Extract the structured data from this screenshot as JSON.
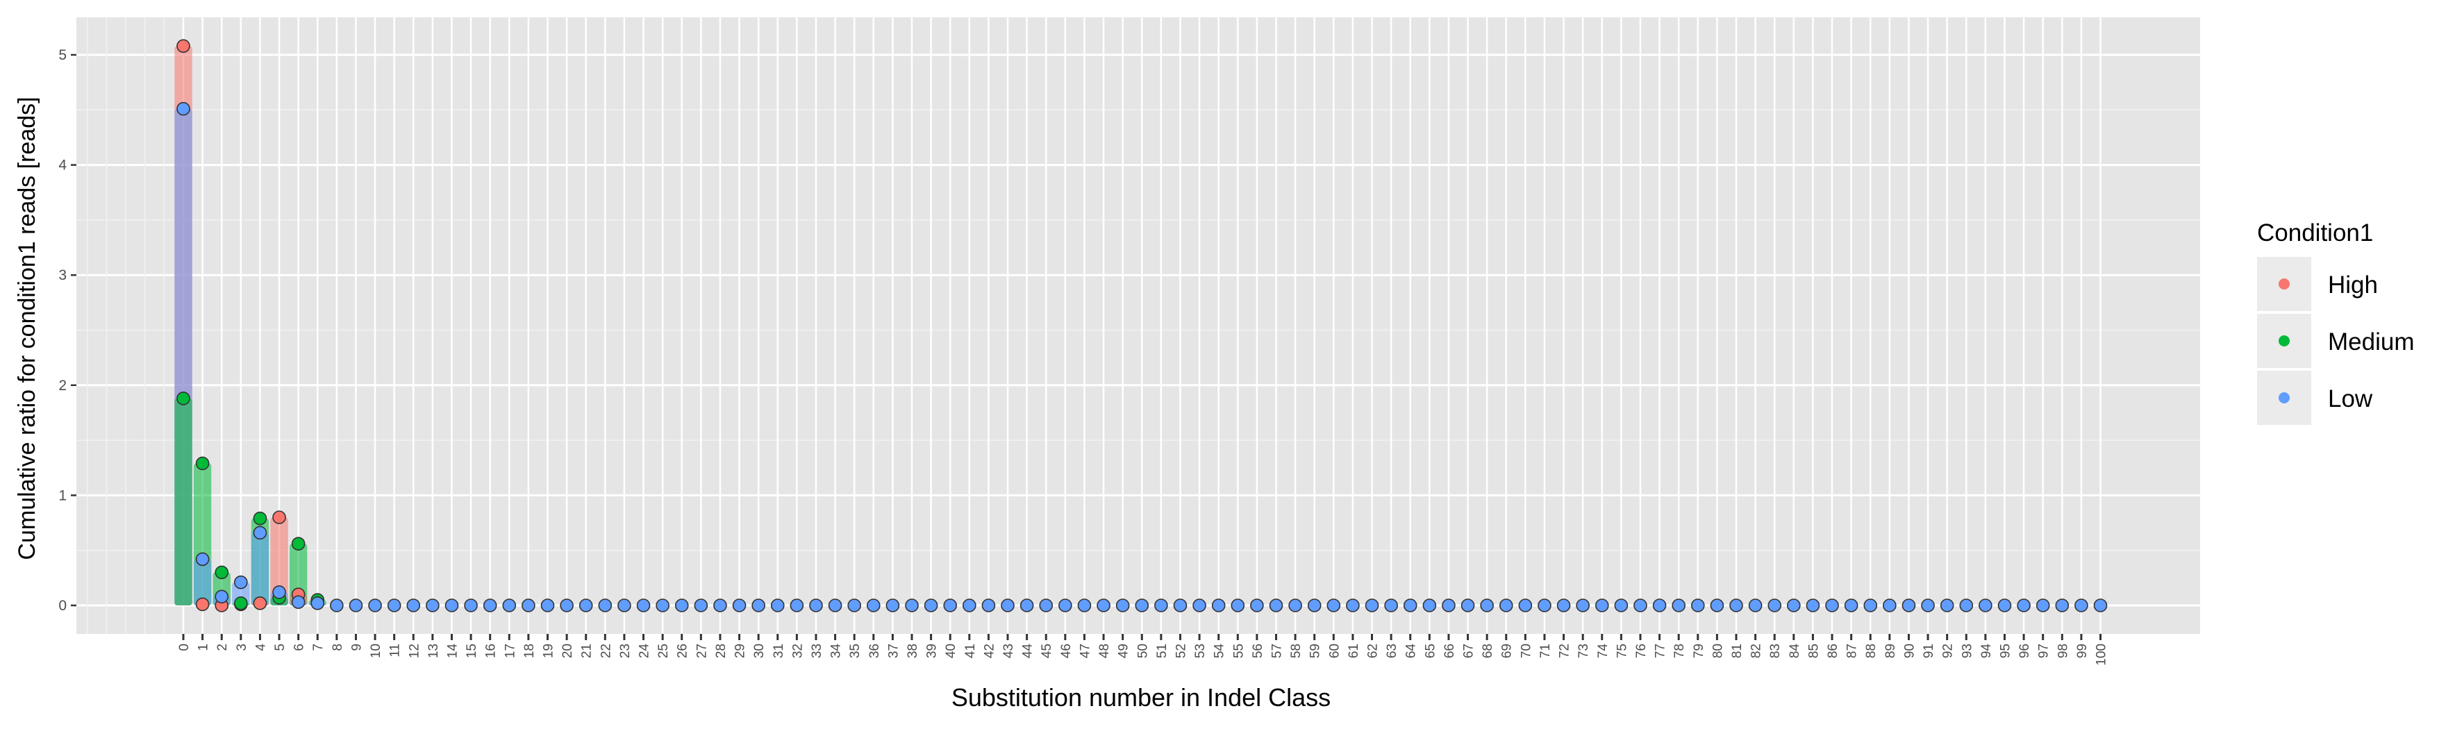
{
  "colors": {
    "panel": "#e5e5e5",
    "grid_major": "#ffffff",
    "grid_minor": "#f2f2f2",
    "High": "#f8766d",
    "Medium": "#00ba38",
    "Low": "#619cff",
    "axis_text": "#4d4d4d",
    "legend_key_bg": "#ebebeb"
  },
  "chart_data": {
    "type": "bar",
    "xlabel": "Substitution number in Indel Class",
    "ylabel": "Cumulative ratio for condition1 reads [reads]",
    "ylim": [
      -0.25,
      5.3
    ],
    "y_ticks": [
      "0",
      "1",
      "2",
      "3",
      "4",
      "5"
    ],
    "x_ticks": [
      "0",
      "1",
      "2",
      "3",
      "4",
      "5",
      "6",
      "7",
      "8",
      "9",
      "10",
      "11",
      "12",
      "13",
      "14",
      "15",
      "16",
      "17",
      "18",
      "19",
      "20",
      "21",
      "22",
      "23",
      "24",
      "25",
      "26",
      "27",
      "28",
      "29",
      "30",
      "31",
      "32",
      "33",
      "34",
      "35",
      "36",
      "37",
      "38",
      "39",
      "40",
      "41",
      "42",
      "43",
      "44",
      "45",
      "46",
      "47",
      "48",
      "49",
      "50",
      "51",
      "52",
      "53",
      "54",
      "55",
      "56",
      "57",
      "58",
      "59",
      "60",
      "61",
      "62",
      "63",
      "64",
      "65",
      "66",
      "67",
      "68",
      "69",
      "70",
      "71",
      "72",
      "73",
      "74",
      "75",
      "76",
      "77",
      "78",
      "79",
      "80",
      "81",
      "82",
      "83",
      "84",
      "85",
      "86",
      "87",
      "88",
      "89",
      "90",
      "91",
      "92",
      "93",
      "94",
      "95",
      "96",
      "97",
      "98",
      "99",
      "100"
    ],
    "x_range": [
      -5.5,
      105.5
    ],
    "grid": true,
    "legend_position": "right",
    "legend": {
      "title": "Condition1",
      "entries": [
        "High",
        "Medium",
        "Low"
      ]
    },
    "series": [
      {
        "name": "High",
        "x": [
          0,
          1,
          2,
          3,
          4,
          5,
          6
        ],
        "values": [
          5.08,
          0.01,
          0.0,
          0.01,
          0.02,
          0.8,
          0.1
        ]
      },
      {
        "name": "Medium",
        "x": [
          0,
          1,
          2,
          3,
          4,
          5,
          6,
          7
        ],
        "values": [
          1.88,
          1.29,
          0.3,
          0.02,
          0.79,
          0.07,
          0.56,
          0.05
        ]
      },
      {
        "name": "Low",
        "x": [
          0,
          1,
          2,
          3,
          4,
          5,
          6,
          7
        ],
        "values": [
          4.51,
          0.42,
          0.08,
          0.21,
          0.66,
          0.12,
          0.03,
          0.02
        ]
      }
    ],
    "low_zero_from_x": 8,
    "low_zero_to_x": 100
  }
}
